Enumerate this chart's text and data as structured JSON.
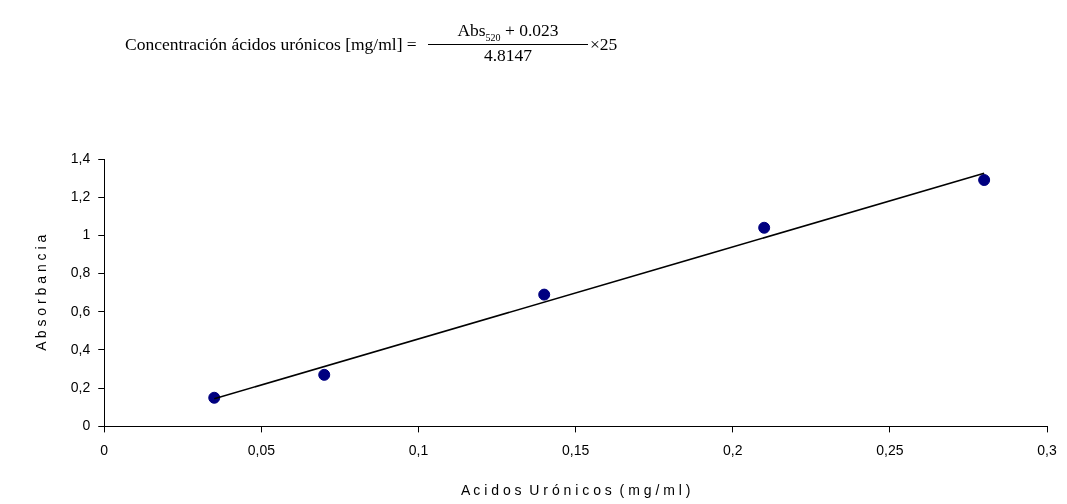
{
  "chart_data": {
    "type": "scatter",
    "title": "Concentración ácidos urónicos [mg/ml] =",
    "annotations": [
      "Abs$_{520}$ + 0.023",
      "4.8147",
      "×25"
    ],
    "xlabel": "A c i d o s  U r ó n i c o s  ( m g / m l )",
    "ylabel": "A b s o r b a n c i a",
    "xlim": [
      0,
      0.3
    ],
    "xticks": [
      {
        "value": 0,
        "label": "0"
      },
      {
        "value": 0.05,
        "label": "0,05"
      },
      {
        "value": 0.1,
        "label": "0,1"
      },
      {
        "value": 0.15,
        "label": "0,15"
      },
      {
        "value": 0.2,
        "label": "0,2"
      },
      {
        "value": 0.25,
        "label": "0,25"
      },
      {
        "value": 0.3,
        "label": "0,3"
      }
    ],
    "ylim": [
      0,
      1.4
    ],
    "yticks": [
      {
        "value": 0,
        "label": "0"
      },
      {
        "value": 0.2,
        "label": "0,2"
      },
      {
        "value": 0.4,
        "label": "0,4"
      },
      {
        "value": 0.6,
        "label": "0,6"
      },
      {
        "value": 0.8,
        "label": "0,8"
      },
      {
        "value": 1,
        "label": "1"
      },
      {
        "value": 1.2,
        "label": "1,2"
      },
      {
        "value": 1.4,
        "label": "1,4"
      }
    ],
    "grid": false,
    "legend": false,
    "series": [
      {
        "type": "scatter",
        "color": "#000080",
        "marker": "circle",
        "x": [
          0.035,
          0.07,
          0.14,
          0.21,
          0.28
        ],
        "values": [
          0.15,
          0.27,
          0.69,
          1.04,
          1.29
        ]
      },
      {
        "type": "line",
        "color": "#000000",
        "x": [
          0.035,
          0.28
        ],
        "values": [
          0.145,
          1.325
        ]
      }
    ]
  }
}
